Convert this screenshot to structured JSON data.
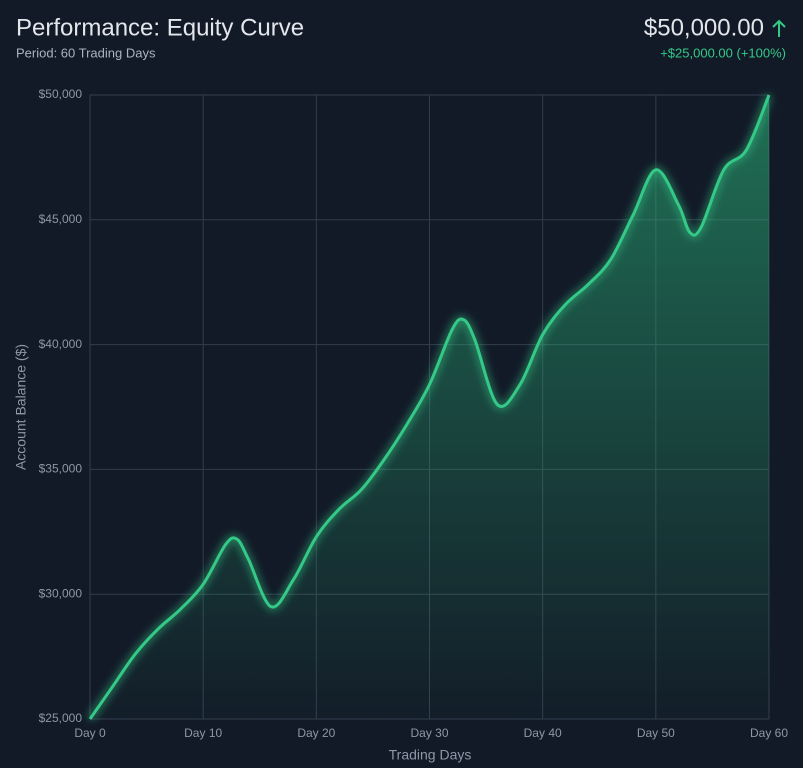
{
  "chart_data": {
    "type": "line",
    "title": "Performance: Equity Curve",
    "subtitle": "Period: 60 Trading Days",
    "summary": {
      "value": "$50,000.00",
      "change": "+$25,000.00 (+100%)"
    },
    "x_label": "Trading Days",
    "y_label": "Account Balance ($)",
    "color": "#34c987",
    "x": [
      0,
      2,
      4,
      6,
      8,
      10,
      12,
      13,
      14,
      16,
      18,
      20,
      22,
      24,
      26,
      28,
      30,
      32,
      33,
      34,
      36,
      38,
      40,
      42,
      44,
      46,
      48,
      50,
      52,
      53,
      54,
      56,
      58,
      60
    ],
    "values": [
      25000,
      26300,
      27600,
      28600,
      29400,
      30400,
      32000,
      32200,
      31400,
      29500,
      30600,
      32300,
      33400,
      34200,
      35400,
      36800,
      38400,
      40600,
      41000,
      40200,
      37600,
      38400,
      40400,
      41600,
      42400,
      43400,
      45200,
      47000,
      45600,
      44500,
      44700,
      47000,
      47800,
      50000
    ],
    "xlim": [
      0,
      60
    ],
    "xticks": [
      {
        "value": 0,
        "label": "Day 0"
      },
      {
        "value": 10,
        "label": "Day 10"
      },
      {
        "value": 20,
        "label": "Day 20"
      },
      {
        "value": 30,
        "label": "Day 30"
      },
      {
        "value": 40,
        "label": "Day 40"
      },
      {
        "value": 50,
        "label": "Day 50"
      },
      {
        "value": 60,
        "label": "Day 60"
      }
    ],
    "ylim": [
      25000,
      50000
    ],
    "yticks": [
      {
        "value": 25000,
        "label": "$25,000"
      },
      {
        "value": 30000,
        "label": "$30,000"
      },
      {
        "value": 35000,
        "label": "$35,000"
      },
      {
        "value": 40000,
        "label": "$40,000"
      },
      {
        "value": 45000,
        "label": "$45,000"
      },
      {
        "value": 50000,
        "label": "$50,000"
      }
    ],
    "grid": true
  }
}
